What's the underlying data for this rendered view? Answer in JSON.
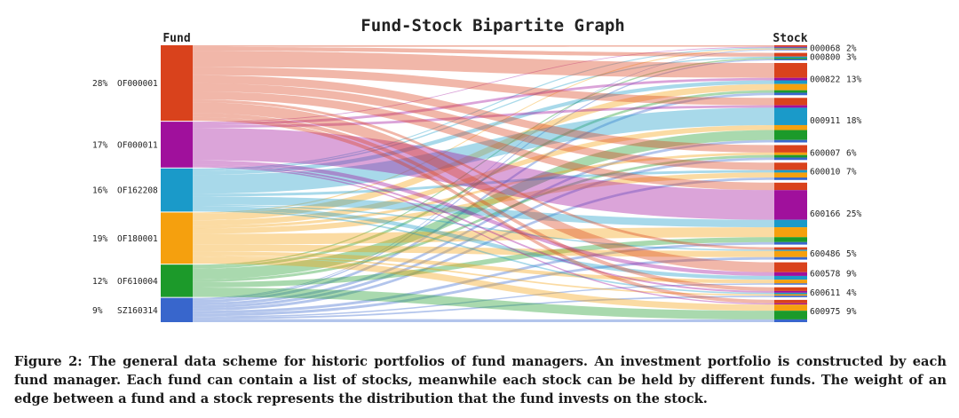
{
  "chart_data": {
    "type": "sankey",
    "title": "Fund-Stock Bipartite Graph",
    "left_header": "Fund",
    "right_header": "Stock",
    "funds": [
      {
        "name": "OF000001",
        "share": "28%",
        "weight": 28,
        "color": "#d9421c"
      },
      {
        "name": "OF000011",
        "share": "17%",
        "weight": 17,
        "color": "#a0109c"
      },
      {
        "name": "OF162208",
        "share": "16%",
        "weight": 16,
        "color": "#1a9ac9"
      },
      {
        "name": "OF180001",
        "share": "19%",
        "weight": 19,
        "color": "#f5a00e"
      },
      {
        "name": "OF610004",
        "share": "12%",
        "weight": 12,
        "color": "#1c9a2a"
      },
      {
        "name": "SZ160314",
        "share": "9%",
        "weight": 9,
        "color": "#3866cc"
      }
    ],
    "stocks": [
      {
        "name": "000068",
        "share": "2%",
        "weight": 2
      },
      {
        "name": "000800",
        "share": "3%",
        "weight": 3
      },
      {
        "name": "000822",
        "share": "13%",
        "weight": 13
      },
      {
        "name": "000911",
        "share": "18%",
        "weight": 18
      },
      {
        "name": "600007",
        "share": "6%",
        "weight": 6
      },
      {
        "name": "600010",
        "share": "7%",
        "weight": 7
      },
      {
        "name": "600166",
        "share": "25%",
        "weight": 25
      },
      {
        "name": "600486",
        "share": "5%",
        "weight": 5
      },
      {
        "name": "600578",
        "share": "9%",
        "weight": 9
      },
      {
        "name": "600611",
        "share": "4%",
        "weight": 4
      },
      {
        "name": "600975",
        "share": "9%",
        "weight": 9
      }
    ],
    "links": [
      {
        "fund": "OF000001",
        "stock": "000068",
        "value": 0.6
      },
      {
        "fund": "OF000011",
        "stock": "000068",
        "value": 0.3
      },
      {
        "fund": "OF162208",
        "stock": "000068",
        "value": 0.4
      },
      {
        "fund": "OF180001",
        "stock": "000068",
        "value": 0.4
      },
      {
        "fund": "SZ160314",
        "stock": "000068",
        "value": 0.3
      },
      {
        "fund": "OF000001",
        "stock": "000800",
        "value": 1.5
      },
      {
        "fund": "OF162208",
        "stock": "000800",
        "value": 0.5
      },
      {
        "fund": "OF610004",
        "stock": "000800",
        "value": 0.5
      },
      {
        "fund": "SZ160314",
        "stock": "000800",
        "value": 0.5
      },
      {
        "fund": "OF000001",
        "stock": "000822",
        "value": 6
      },
      {
        "fund": "OF000011",
        "stock": "000822",
        "value": 1
      },
      {
        "fund": "OF162208",
        "stock": "000822",
        "value": 1.5
      },
      {
        "fund": "OF180001",
        "stock": "000822",
        "value": 2.5
      },
      {
        "fund": "OF610004",
        "stock": "000822",
        "value": 1
      },
      {
        "fund": "SZ160314",
        "stock": "000822",
        "value": 1
      },
      {
        "fund": "OF000001",
        "stock": "000911",
        "value": 3
      },
      {
        "fund": "OF000011",
        "stock": "000911",
        "value": 1
      },
      {
        "fund": "OF162208",
        "stock": "000911",
        "value": 7
      },
      {
        "fund": "OF180001",
        "stock": "000911",
        "value": 2
      },
      {
        "fund": "OF610004",
        "stock": "000911",
        "value": 4
      },
      {
        "fund": "SZ160314",
        "stock": "000911",
        "value": 1
      },
      {
        "fund": "OF000001",
        "stock": "600007",
        "value": 3
      },
      {
        "fund": "OF180001",
        "stock": "600007",
        "value": 1
      },
      {
        "fund": "OF610004",
        "stock": "600007",
        "value": 1
      },
      {
        "fund": "SZ160314",
        "stock": "600007",
        "value": 1
      },
      {
        "fund": "OF000001",
        "stock": "600010",
        "value": 3
      },
      {
        "fund": "OF162208",
        "stock": "600010",
        "value": 1
      },
      {
        "fund": "OF180001",
        "stock": "600010",
        "value": 2
      },
      {
        "fund": "SZ160314",
        "stock": "600010",
        "value": 1
      },
      {
        "fund": "OF000001",
        "stock": "600166",
        "value": 3
      },
      {
        "fund": "OF000011",
        "stock": "600166",
        "value": 12
      },
      {
        "fund": "OF162208",
        "stock": "600166",
        "value": 3
      },
      {
        "fund": "OF180001",
        "stock": "600166",
        "value": 4
      },
      {
        "fund": "OF610004",
        "stock": "600166",
        "value": 2
      },
      {
        "fund": "SZ160314",
        "stock": "600166",
        "value": 1
      },
      {
        "fund": "OF000001",
        "stock": "600486",
        "value": 1
      },
      {
        "fund": "OF162208",
        "stock": "600486",
        "value": 0.5
      },
      {
        "fund": "OF180001",
        "stock": "600486",
        "value": 2.5
      },
      {
        "fund": "SZ160314",
        "stock": "600486",
        "value": 1
      },
      {
        "fund": "OF000001",
        "stock": "600578",
        "value": 4
      },
      {
        "fund": "OF000011",
        "stock": "600578",
        "value": 1.5
      },
      {
        "fund": "OF162208",
        "stock": "600578",
        "value": 1.5
      },
      {
        "fund": "OF180001",
        "stock": "600578",
        "value": 1.5
      },
      {
        "fund": "SZ160314",
        "stock": "600578",
        "value": 0.5
      },
      {
        "fund": "OF000001",
        "stock": "600611",
        "value": 1.5
      },
      {
        "fund": "OF000011",
        "stock": "600611",
        "value": 0.7
      },
      {
        "fund": "OF162208",
        "stock": "600611",
        "value": 0.6
      },
      {
        "fund": "OF180001",
        "stock": "600611",
        "value": 0.6
      },
      {
        "fund": "SZ160314",
        "stock": "600611",
        "value": 0.6
      },
      {
        "fund": "OF000001",
        "stock": "600975",
        "value": 1.4
      },
      {
        "fund": "OF000011",
        "stock": "600975",
        "value": 0.5
      },
      {
        "fund": "OF180001",
        "stock": "600975",
        "value": 2.5
      },
      {
        "fund": "OF610004",
        "stock": "600975",
        "value": 3.5
      },
      {
        "fund": "SZ160314",
        "stock": "600975",
        "value": 1.1
      }
    ]
  },
  "caption": "Figure 2: The general data scheme for historic portfolios of fund managers. An investment portfolio is constructed by each fund manager. Each fund can contain a list of stocks, meanwhile each stock can be held by different funds. The weight of an edge between a fund and a stock represents the distribution that the fund invests on the stock."
}
